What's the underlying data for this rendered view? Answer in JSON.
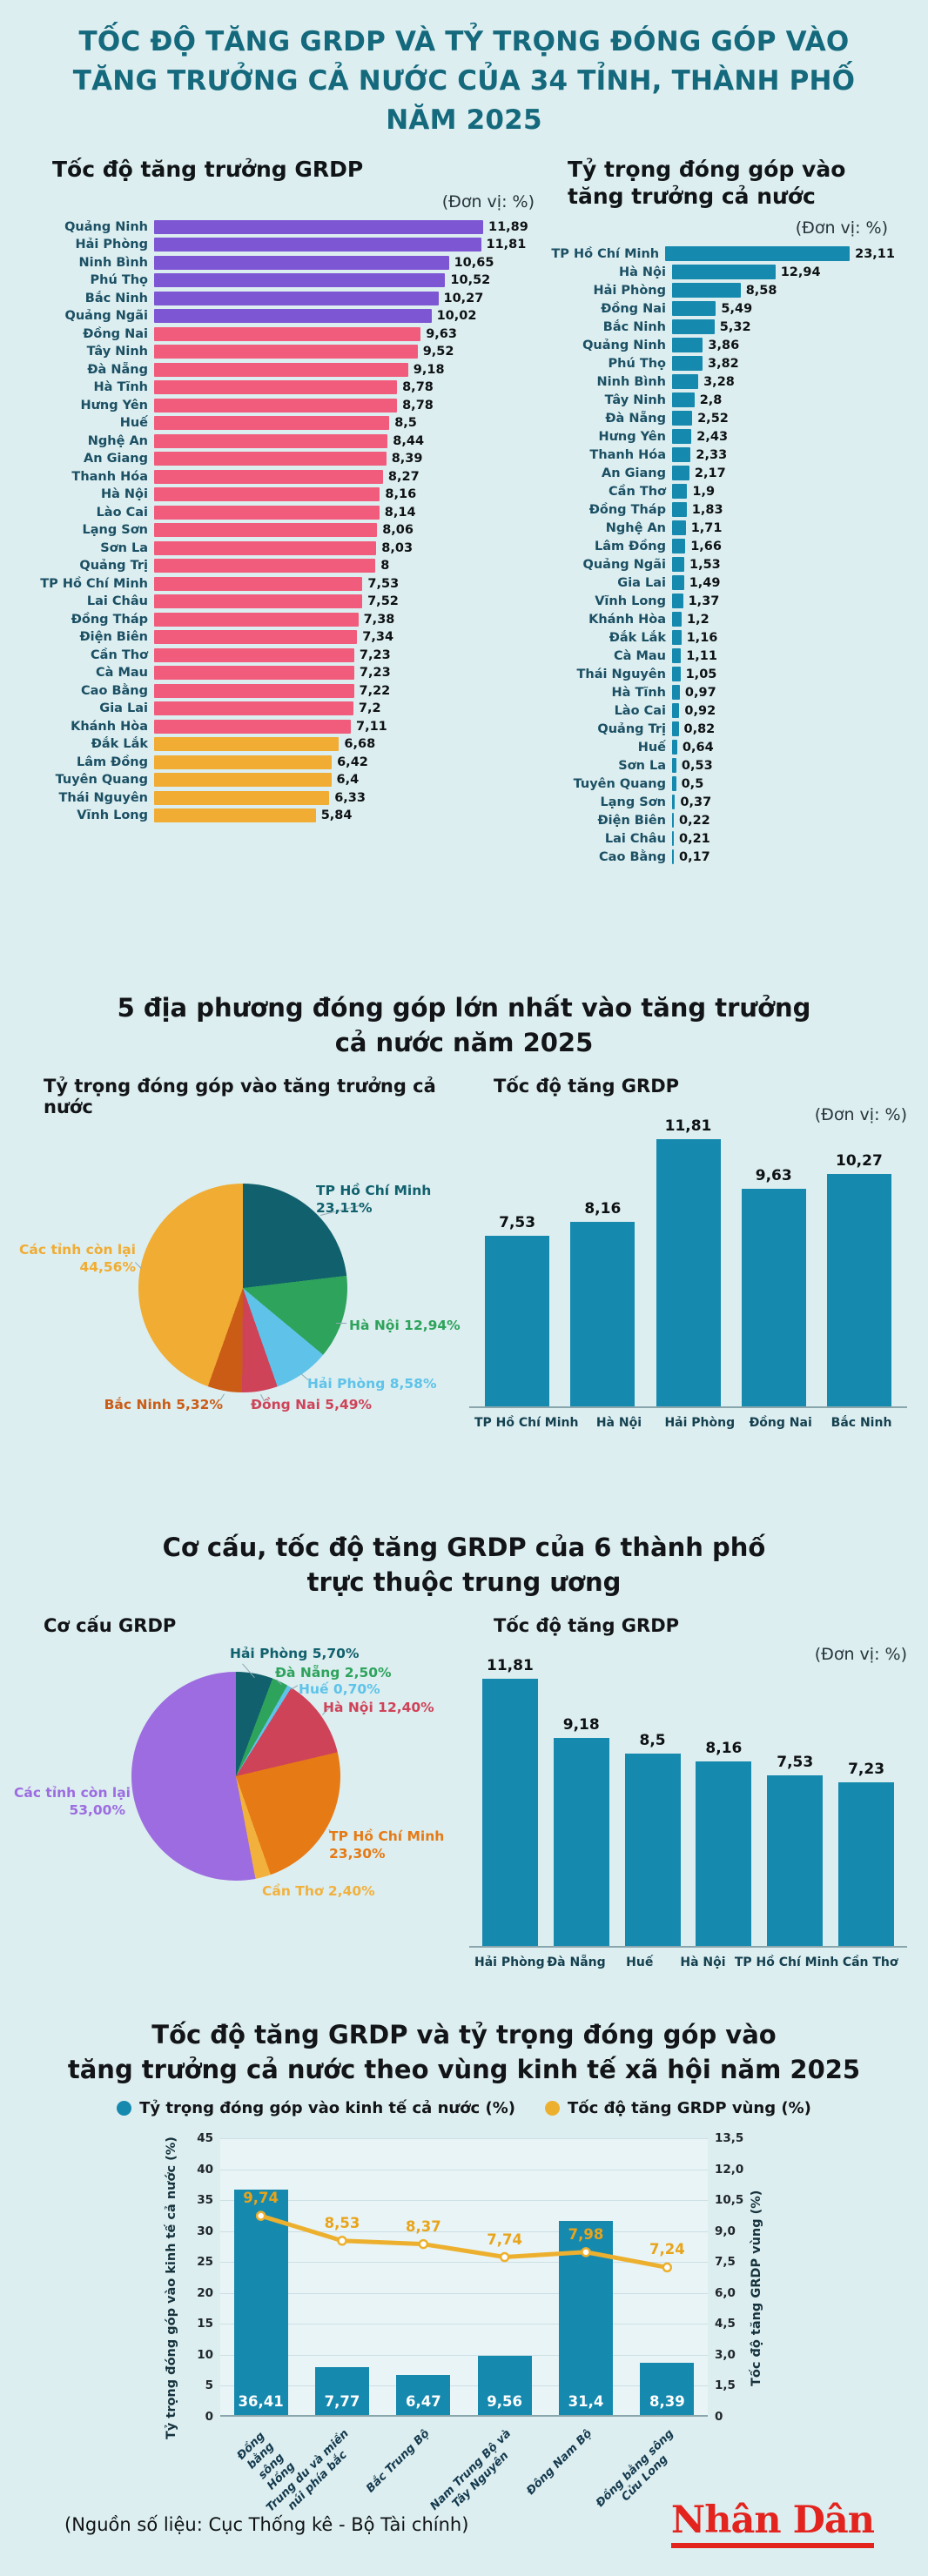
{
  "page": {
    "title_lines": [
      "TỐC ĐỘ TĂNG GRDP VÀ TỶ TRỌNG ĐÓNG GÓP VÀO",
      "TĂNG TRƯỞNG CẢ NƯỚC CỦA 34 TỈNH, THÀNH PHỐ",
      "NĂM 2025"
    ],
    "unit_label": "(Đơn vị: %)",
    "source_note": "(Nguồn số liệu: Cục Thống kê - Bộ Tài chính)",
    "brand": "Nhân Dân"
  },
  "colors": {
    "background": "#dceef0",
    "title_teal": "#15697d",
    "bar_purple": "#7d56d3",
    "bar_pink": "#f15c7c",
    "bar_amber": "#f0ac33",
    "bar_teal": "#1689ae",
    "line_orange": "#edb02e",
    "brand_red": "#e3231e"
  },
  "section1": {
    "left_title": "Tốc độ tăng trưởng GRDP",
    "right_title_lines": [
      "Tỷ trọng đóng góp vào",
      "tăng trưởng cả nước"
    ]
  },
  "section2": {
    "title_lines": [
      "5 địa phương đóng góp lớn nhất vào tăng trưởng",
      "cả nước năm 2025"
    ],
    "left_subtitle": "Tỷ trọng đóng góp vào tăng trưởng cả nước",
    "right_subtitle": "Tốc độ tăng GRDP"
  },
  "section3": {
    "title_lines": [
      "Cơ cấu, tốc độ tăng GRDP của 6 thành phố",
      "trực thuộc trung ương"
    ],
    "left_subtitle": "Cơ cấu GRDP",
    "right_subtitle": "Tốc độ tăng GRDP"
  },
  "section4": {
    "title_lines": [
      "Tốc độ tăng GRDP và tỷ trọng đóng góp vào",
      "tăng trưởng cả nước theo vùng kinh tế xã hội năm 2025"
    ]
  },
  "chart_data": [
    {
      "id": "grdp_growth_by_province",
      "type": "bar",
      "orientation": "horizontal",
      "title": "Tốc độ tăng trưởng GRDP",
      "unit": "%",
      "items": [
        {
          "label": "Quảng Ninh",
          "value": 11.89,
          "display": "11,89",
          "group": "high"
        },
        {
          "label": "Hải Phòng",
          "value": 11.81,
          "display": "11,81",
          "group": "high"
        },
        {
          "label": "Ninh Bình",
          "value": 10.65,
          "display": "10,65",
          "group": "high"
        },
        {
          "label": "Phú Thọ",
          "value": 10.52,
          "display": "10,52",
          "group": "high"
        },
        {
          "label": "Bắc Ninh",
          "value": 10.27,
          "display": "10,27",
          "group": "high"
        },
        {
          "label": "Quảng Ngãi",
          "value": 10.02,
          "display": "10,02",
          "group": "high"
        },
        {
          "label": "Đồng Nai",
          "value": 9.63,
          "display": "9,63",
          "group": "mid"
        },
        {
          "label": "Tây Ninh",
          "value": 9.52,
          "display": "9,52",
          "group": "mid"
        },
        {
          "label": "Đà Nẵng",
          "value": 9.18,
          "display": "9,18",
          "group": "mid"
        },
        {
          "label": "Hà Tĩnh",
          "value": 8.78,
          "display": "8,78",
          "group": "mid"
        },
        {
          "label": "Hưng Yên",
          "value": 8.78,
          "display": "8,78",
          "group": "mid"
        },
        {
          "label": "Huế",
          "value": 8.5,
          "display": "8,5",
          "group": "mid"
        },
        {
          "label": "Nghệ An",
          "value": 8.44,
          "display": "8,44",
          "group": "mid"
        },
        {
          "label": "An Giang",
          "value": 8.39,
          "display": "8,39",
          "group": "mid"
        },
        {
          "label": "Thanh Hóa",
          "value": 8.27,
          "display": "8,27",
          "group": "mid"
        },
        {
          "label": "Hà Nội",
          "value": 8.16,
          "display": "8,16",
          "group": "mid"
        },
        {
          "label": "Lào Cai",
          "value": 8.14,
          "display": "8,14",
          "group": "mid"
        },
        {
          "label": "Lạng Sơn",
          "value": 8.06,
          "display": "8,06",
          "group": "mid"
        },
        {
          "label": "Sơn La",
          "value": 8.03,
          "display": "8,03",
          "group": "mid"
        },
        {
          "label": "Quảng Trị",
          "value": 8.0,
          "display": "8",
          "group": "mid"
        },
        {
          "label": "TP Hồ Chí Minh",
          "value": 7.53,
          "display": "7,53",
          "group": "mid"
        },
        {
          "label": "Lai Châu",
          "value": 7.52,
          "display": "7,52",
          "group": "mid"
        },
        {
          "label": "Đồng Tháp",
          "value": 7.38,
          "display": "7,38",
          "group": "mid"
        },
        {
          "label": "Điện Biên",
          "value": 7.34,
          "display": "7,34",
          "group": "mid"
        },
        {
          "label": "Cần Thơ",
          "value": 7.23,
          "display": "7,23",
          "group": "mid"
        },
        {
          "label": "Cà Mau",
          "value": 7.23,
          "display": "7,23",
          "group": "mid"
        },
        {
          "label": "Cao Bằng",
          "value": 7.22,
          "display": "7,22",
          "group": "mid"
        },
        {
          "label": "Gia Lai",
          "value": 7.2,
          "display": "7,2",
          "group": "mid"
        },
        {
          "label": "Khánh Hòa",
          "value": 7.11,
          "display": "7,11",
          "group": "mid"
        },
        {
          "label": "Đắk Lắk",
          "value": 6.68,
          "display": "6,68",
          "group": "low"
        },
        {
          "label": "Lâm Đồng",
          "value": 6.42,
          "display": "6,42",
          "group": "low"
        },
        {
          "label": "Tuyên Quang",
          "value": 6.4,
          "display": "6,4",
          "group": "low"
        },
        {
          "label": "Thái Nguyên",
          "value": 6.33,
          "display": "6,33",
          "group": "low"
        },
        {
          "label": "Vĩnh Long",
          "value": 5.84,
          "display": "5,84",
          "group": "low"
        }
      ]
    },
    {
      "id": "contribution_by_province",
      "type": "bar",
      "orientation": "horizontal",
      "title": "Tỷ trọng đóng góp vào tăng trưởng cả nước",
      "unit": "%",
      "items": [
        {
          "label": "TP Hồ Chí Minh",
          "value": 23.11,
          "display": "23,11",
          "group": "teal"
        },
        {
          "label": "Hà Nội",
          "value": 12.94,
          "display": "12,94",
          "group": "teal"
        },
        {
          "label": "Hải Phòng",
          "value": 8.58,
          "display": "8,58",
          "group": "teal"
        },
        {
          "label": "Đồng Nai",
          "value": 5.49,
          "display": "5,49",
          "group": "teal"
        },
        {
          "label": "Bắc Ninh",
          "value": 5.32,
          "display": "5,32",
          "group": "teal"
        },
        {
          "label": "Quảng Ninh",
          "value": 3.86,
          "display": "3,86",
          "group": "teal"
        },
        {
          "label": "Phú Thọ",
          "value": 3.82,
          "display": "3,82",
          "group": "teal"
        },
        {
          "label": "Ninh Bình",
          "value": 3.28,
          "display": "3,28",
          "group": "teal"
        },
        {
          "label": "Tây Ninh",
          "value": 2.8,
          "display": "2,8",
          "group": "teal"
        },
        {
          "label": "Đà Nẵng",
          "value": 2.52,
          "display": "2,52",
          "group": "teal"
        },
        {
          "label": "Hưng Yên",
          "value": 2.43,
          "display": "2,43",
          "group": "teal"
        },
        {
          "label": "Thanh Hóa",
          "value": 2.33,
          "display": "2,33",
          "group": "teal"
        },
        {
          "label": "An Giang",
          "value": 2.17,
          "display": "2,17",
          "group": "teal"
        },
        {
          "label": "Cần Thơ",
          "value": 1.9,
          "display": "1,9",
          "group": "teal"
        },
        {
          "label": "Đồng Tháp",
          "value": 1.83,
          "display": "1,83",
          "group": "teal"
        },
        {
          "label": "Nghệ An",
          "value": 1.71,
          "display": "1,71",
          "group": "teal"
        },
        {
          "label": "Lâm Đồng",
          "value": 1.66,
          "display": "1,66",
          "group": "teal"
        },
        {
          "label": "Quảng Ngãi",
          "value": 1.53,
          "display": "1,53",
          "group": "teal"
        },
        {
          "label": "Gia Lai",
          "value": 1.49,
          "display": "1,49",
          "group": "teal"
        },
        {
          "label": "Vĩnh Long",
          "value": 1.37,
          "display": "1,37",
          "group": "teal"
        },
        {
          "label": "Khánh Hòa",
          "value": 1.2,
          "display": "1,2",
          "group": "teal"
        },
        {
          "label": "Đắk Lắk",
          "value": 1.16,
          "display": "1,16",
          "group": "teal"
        },
        {
          "label": "Cà Mau",
          "value": 1.11,
          "display": "1,11",
          "group": "teal"
        },
        {
          "label": "Thái Nguyên",
          "value": 1.05,
          "display": "1,05",
          "group": "teal"
        },
        {
          "label": "Hà Tĩnh",
          "value": 0.97,
          "display": "0,97",
          "group": "teal"
        },
        {
          "label": "Lào Cai",
          "value": 0.92,
          "display": "0,92",
          "group": "teal"
        },
        {
          "label": "Quảng Trị",
          "value": 0.82,
          "display": "0,82",
          "group": "teal"
        },
        {
          "label": "Huế",
          "value": 0.64,
          "display": "0,64",
          "group": "teal"
        },
        {
          "label": "Sơn La",
          "value": 0.53,
          "display": "0,53",
          "group": "teal"
        },
        {
          "label": "Tuyên Quang",
          "value": 0.5,
          "display": "0,5",
          "group": "teal"
        },
        {
          "label": "Lạng Sơn",
          "value": 0.37,
          "display": "0,37",
          "group": "teal"
        },
        {
          "label": "Điện Biên",
          "value": 0.22,
          "display": "0,22",
          "group": "teal"
        },
        {
          "label": "Lai Châu",
          "value": 0.21,
          "display": "0,21",
          "group": "teal"
        },
        {
          "label": "Cao Bằng",
          "value": 0.17,
          "display": "0,17",
          "group": "teal"
        }
      ]
    },
    {
      "id": "top5_contribution_pie",
      "type": "pie",
      "title": "Tỷ trọng đóng góp vào tăng trưởng cả nước",
      "slices": [
        {
          "label": "TP Hồ Chí Minh",
          "value": 23.11,
          "display": "TP Hồ Chí Minh\n23,11%",
          "color": "#11606d"
        },
        {
          "label": "Hà Nội",
          "value": 12.94,
          "display": "Hà Nội 12,94%",
          "color": "#2ea35c"
        },
        {
          "label": "Hải Phòng",
          "value": 8.58,
          "display": "Hải Phòng 8,58%",
          "color": "#5fc3e9"
        },
        {
          "label": "Đồng Nai",
          "value": 5.49,
          "display": "Đồng Nai 5,49%",
          "color": "#cf4359"
        },
        {
          "label": "Bắc Ninh",
          "value": 5.32,
          "display": "Bắc Ninh 5,32%",
          "color": "#ca5c16"
        },
        {
          "label": "Các tỉnh còn lại",
          "value": 44.56,
          "display": "Các tỉnh còn lại\n44,56%",
          "color": "#f0ac33"
        }
      ]
    },
    {
      "id": "top5_growth_bar",
      "type": "bar",
      "orientation": "vertical",
      "title": "Tốc độ tăng GRDP",
      "ylim": [
        0,
        12
      ],
      "categories": [
        "TP Hồ Chí Minh",
        "Hà Nội",
        "Hải Phòng",
        "Đồng Nai",
        "Bắc Ninh"
      ],
      "values": [
        7.53,
        8.16,
        11.81,
        9.63,
        10.27
      ],
      "displays": [
        "7,53",
        "8,16",
        "11,81",
        "9,63",
        "10,27"
      ]
    },
    {
      "id": "six_cities_structure_pie",
      "type": "pie",
      "title": "Cơ cấu GRDP",
      "slices": [
        {
          "label": "Hải Phòng",
          "value": 5.7,
          "display": "Hải Phòng 5,70%",
          "color": "#11606d"
        },
        {
          "label": "Đà Nẵng",
          "value": 2.5,
          "display": "Đà Nẵng 2,50%",
          "color": "#2ea35c"
        },
        {
          "label": "Huế",
          "value": 0.7,
          "display": "Huế 0,70%",
          "color": "#5fc3e9"
        },
        {
          "label": "Hà Nội",
          "value": 12.4,
          "display": "Hà Nội 12,40%",
          "color": "#cf4359"
        },
        {
          "label": "TP Hồ Chí Minh",
          "value": 23.3,
          "display": "TP Hồ Chí Minh\n23,30%",
          "color": "#e67a15"
        },
        {
          "label": "Cần Thơ",
          "value": 2.4,
          "display": "Cần Thơ 2,40%",
          "color": "#f2b13d"
        },
        {
          "label": "Các tỉnh còn lại",
          "value": 53.0,
          "display": "Các tỉnh còn lại\n53,00%",
          "color": "#9c6ce0"
        }
      ]
    },
    {
      "id": "six_cities_growth_bar",
      "type": "bar",
      "orientation": "vertical",
      "title": "Tốc độ tăng GRDP",
      "ylim": [
        0,
        12
      ],
      "categories": [
        "Hải Phòng",
        "Đà Nẵng",
        "Huế",
        "Hà Nội",
        "TP Hồ Chí Minh",
        "Cần Thơ"
      ],
      "values": [
        11.81,
        9.18,
        8.5,
        8.16,
        7.53,
        7.23
      ],
      "displays": [
        "11,81",
        "9,18",
        "8,5",
        "8,16",
        "7,53",
        "7,23"
      ]
    },
    {
      "id": "regions_combo",
      "type": "bar",
      "subtype": "bar+line",
      "categories": [
        "Đồng bằng sông\nHồng",
        "Trung du và miền\nnúi phía bắc",
        "Bắc Trung Bộ",
        "Nam Trung Bộ và\nTây Nguyên",
        "Đông Nam Bộ",
        "Đồng bằng sông\nCửu Long"
      ],
      "series": [
        {
          "name": "Tỷ trọng đóng góp vào kinh tế cả nước (%)",
          "type": "bar",
          "axis": "left",
          "values": [
            36.41,
            7.77,
            6.47,
            9.56,
            31.4,
            8.39
          ],
          "displays": [
            "36,41",
            "7,77",
            "6,47",
            "9,56",
            "31,4",
            "8,39"
          ],
          "color": "#1689ae"
        },
        {
          "name": "Tốc độ tăng GRDP vùng (%)",
          "type": "line",
          "axis": "right",
          "values": [
            9.74,
            8.53,
            8.37,
            7.74,
            7.98,
            7.24
          ],
          "displays": [
            "9,74",
            "8,53",
            "8,37",
            "7,74",
            "7,98",
            "7,24"
          ],
          "color": "#edb02e"
        }
      ],
      "left_axis": {
        "title": "Tỷ trọng đóng góp vào kinh tế cả nước (%)",
        "max": 45,
        "ticks": [
          "45",
          "40",
          "35",
          "30",
          "25",
          "20",
          "15",
          "10",
          "5",
          "0"
        ]
      },
      "right_axis": {
        "title": "Tốc độ tăng GRDP vùng (%)",
        "max": 13.5,
        "ticks": [
          "13,5",
          "12,0",
          "10,5",
          "9,0",
          "7,5",
          "6,0",
          "4,5",
          "3,0",
          "1,5",
          "0"
        ]
      },
      "legend": [
        "Tỷ trọng đóng góp vào kinh tế cả nước (%)",
        "Tốc độ tăng GRDP vùng (%)"
      ],
      "grid": true,
      "legend_position": "top"
    }
  ]
}
